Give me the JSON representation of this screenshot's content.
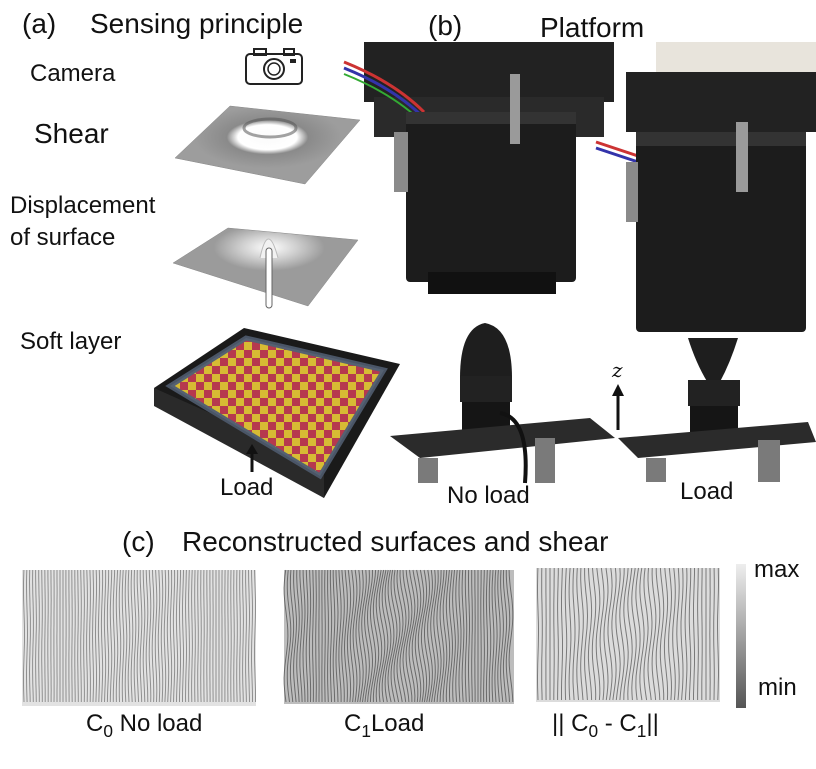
{
  "panel_a": {
    "letter": "(a)",
    "title": "Sensing principle",
    "camera_label": "Camera",
    "shear_label": "Shear",
    "displacement_line1": "Displacement",
    "displacement_line2": "of surface",
    "soft_layer_label": "Soft layer",
    "load_label": "Load",
    "icons": [
      "camera-icon"
    ]
  },
  "panel_b": {
    "letter": "(b)",
    "title": "Platform",
    "no_load_label": "No load",
    "load_label": "Load",
    "axis_label": "z"
  },
  "panel_c": {
    "letter": "(c)",
    "title": "Reconstructed surfaces and shear",
    "c0_letter": "C",
    "c0_sub": "0",
    "c0_label": "No load",
    "c1_letter": "C",
    "c1_sub": "1",
    "c1_label": "Load",
    "diff_open": "|| C",
    "diff_sub0": "0",
    "diff_mid": " - C",
    "diff_sub1": "1",
    "diff_close": "||",
    "colorbar_max": "max",
    "colorbar_min": "min"
  },
  "colors": {
    "text": "#111111",
    "checker_red": "#c0243a",
    "checker_yellow": "#e8c21a",
    "motor_black": "#1c1c1c",
    "surface_gray": "#9a9a9a"
  }
}
